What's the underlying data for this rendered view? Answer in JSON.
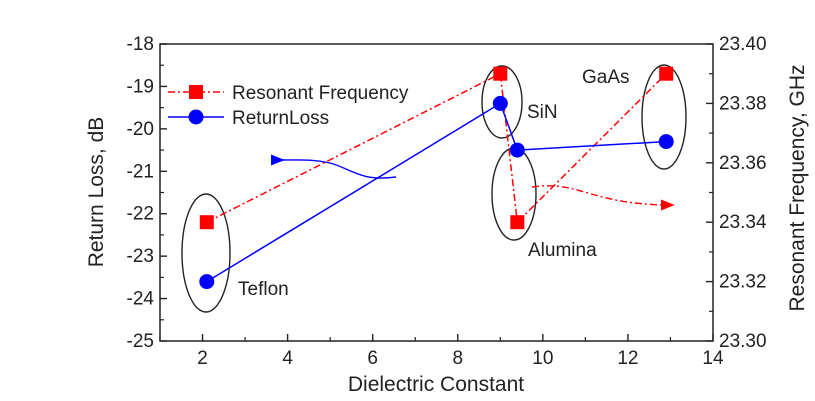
{
  "chart_data": {
    "type": "line",
    "xlabel": "Dielectric Constant",
    "ylabel": "Return Loss, dB",
    "y2label": "Resonant Frequency, GHz",
    "xlim": [
      1,
      14
    ],
    "ylim": [
      -25,
      -18
    ],
    "y2lim": [
      23.3,
      23.4
    ],
    "x_ticks": [
      "2",
      "4",
      "6",
      "8",
      "10",
      "12",
      "14"
    ],
    "y_ticks": [
      "-18",
      "-19",
      "-20",
      "-21",
      "-22",
      "-23",
      "-24",
      "-25"
    ],
    "y2_ticks": [
      "23.40",
      "23.38",
      "23.36",
      "23.34",
      "23.32",
      "23.30"
    ],
    "legend_position": "top-left",
    "series": [
      {
        "name": "Resonant Frequency",
        "axis": "right",
        "marker": "square",
        "line": "dash-dot",
        "color": "#ff0000",
        "points": [
          {
            "x": 2.1,
            "y": 23.34
          },
          {
            "x": 9.0,
            "y": 23.39
          },
          {
            "x": 9.4,
            "y": 23.34
          },
          {
            "x": 12.9,
            "y": 23.39
          }
        ]
      },
      {
        "name": "ReturnLoss",
        "axis": "left",
        "marker": "circle",
        "line": "solid",
        "color": "#0000ff",
        "points": [
          {
            "x": 2.1,
            "y": -23.6
          },
          {
            "x": 9.0,
            "y": -19.4
          },
          {
            "x": 9.4,
            "y": -20.5
          },
          {
            "x": 12.9,
            "y": -20.3
          }
        ]
      }
    ],
    "annotations": [
      {
        "label": "Teflon",
        "x": 2.1
      },
      {
        "label": "SiN",
        "x": 9.0
      },
      {
        "label": "Alumina",
        "x": 9.4
      },
      {
        "label": "GaAs",
        "x": 12.9
      }
    ]
  }
}
